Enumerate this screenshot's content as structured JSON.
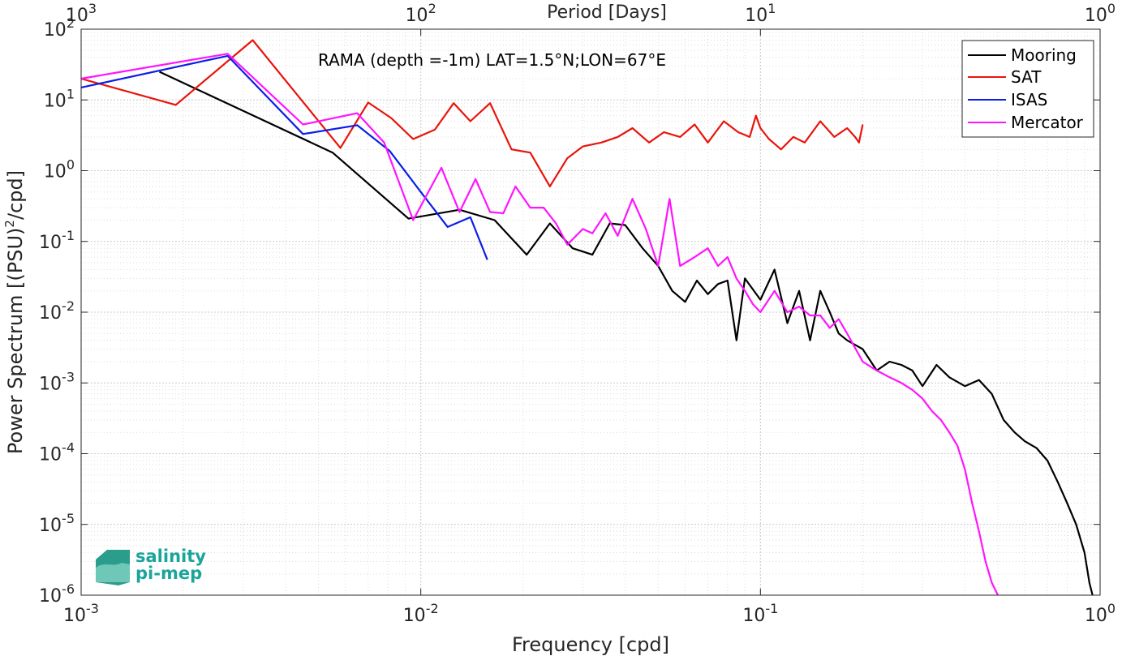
{
  "chart_data": {
    "type": "line",
    "title": "",
    "xlabel": "Frequency [cpd]",
    "ylabel": "Power Spectrum [(PSU)²/cpd]",
    "ylabel_parts": {
      "main": "Power Spectrum [(PSU)",
      "sup": "2",
      "tail": "/cpd]"
    },
    "top_xlabel": "Period [Days]",
    "annotation": "RAMA (depth =-1m) LAT=1.5°N;LON=67°E",
    "x_scale": "log",
    "y_scale": "log",
    "xlim": [
      0.001,
      1
    ],
    "ylim": [
      1e-06,
      100
    ],
    "grid": true,
    "minor_grid": true,
    "legend_position": "top-right",
    "x_ticks": [
      {
        "base": "10",
        "exp": "-3"
      },
      {
        "base": "10",
        "exp": "-2"
      },
      {
        "base": "10",
        "exp": "-1"
      },
      {
        "base": "10",
        "exp": "0"
      }
    ],
    "top_ticks": [
      {
        "base": "10",
        "exp": "3"
      },
      {
        "base": "10",
        "exp": "2"
      },
      {
        "base": "10",
        "exp": "1"
      },
      {
        "base": "10",
        "exp": "0"
      }
    ],
    "y_ticks": [
      {
        "base": "10",
        "exp": "-6"
      },
      {
        "base": "10",
        "exp": "-5"
      },
      {
        "base": "10",
        "exp": "-4"
      },
      {
        "base": "10",
        "exp": "-3"
      },
      {
        "base": "10",
        "exp": "-2"
      },
      {
        "base": "10",
        "exp": "-1"
      },
      {
        "base": "10",
        "exp": "0"
      },
      {
        "base": "10",
        "exp": "1"
      },
      {
        "base": "10",
        "exp": "2"
      }
    ],
    "series": [
      {
        "name": "Mooring",
        "color": "#000000",
        "x": [
          0.0017,
          0.0055,
          0.0092,
          0.013,
          0.0165,
          0.0205,
          0.024,
          0.028,
          0.032,
          0.036,
          0.04,
          0.045,
          0.05,
          0.055,
          0.06,
          0.065,
          0.07,
          0.075,
          0.08,
          0.085,
          0.09,
          0.1,
          0.11,
          0.12,
          0.13,
          0.14,
          0.15,
          0.16,
          0.17,
          0.18,
          0.2,
          0.22,
          0.24,
          0.26,
          0.28,
          0.3,
          0.33,
          0.36,
          0.4,
          0.44,
          0.48,
          0.52,
          0.56,
          0.6,
          0.65,
          0.7,
          0.75,
          0.8,
          0.85,
          0.9,
          0.93,
          0.95
        ],
        "y": [
          25,
          1.8,
          0.21,
          0.28,
          0.2,
          0.065,
          0.18,
          0.08,
          0.065,
          0.18,
          0.17,
          0.08,
          0.045,
          0.02,
          0.014,
          0.028,
          0.018,
          0.025,
          0.028,
          0.004,
          0.03,
          0.015,
          0.04,
          0.007,
          0.02,
          0.004,
          0.02,
          0.01,
          0.005,
          0.004,
          0.003,
          0.0015,
          0.002,
          0.0018,
          0.0015,
          0.0009,
          0.0018,
          0.0012,
          0.0009,
          0.0011,
          0.0007,
          0.0003,
          0.0002,
          0.00015,
          0.00012,
          8e-05,
          4e-05,
          2e-05,
          1e-05,
          4e-06,
          1.5e-06,
          1e-06
        ]
      },
      {
        "name": "SAT",
        "color": "#e8140c",
        "x": [
          0.001,
          0.0019,
          0.0032,
          0.0058,
          0.007,
          0.0082,
          0.0095,
          0.011,
          0.0125,
          0.014,
          0.016,
          0.0185,
          0.021,
          0.024,
          0.027,
          0.03,
          0.034,
          0.038,
          0.042,
          0.047,
          0.052,
          0.058,
          0.064,
          0.07,
          0.078,
          0.086,
          0.093,
          0.097,
          0.1,
          0.106,
          0.115,
          0.125,
          0.135,
          0.15,
          0.165,
          0.18,
          0.19,
          0.195,
          0.2
        ],
        "y": [
          20,
          8.5,
          70,
          2.1,
          9.2,
          5.5,
          2.8,
          3.8,
          9,
          5,
          9,
          2,
          1.8,
          0.6,
          1.5,
          2.2,
          2.5,
          3,
          4,
          2.5,
          3.5,
          3,
          4.5,
          2.5,
          5,
          3.5,
          3,
          6,
          4,
          2.8,
          2,
          3,
          2.5,
          5,
          3,
          4,
          3,
          2.5,
          4.5
        ]
      },
      {
        "name": "ISAS",
        "color": "#0a1ee6",
        "x": [
          0.001,
          0.0027,
          0.0045,
          0.0065,
          0.0081,
          0.01,
          0.012,
          0.014,
          0.0157
        ],
        "y": [
          15,
          42,
          3.3,
          4.4,
          1.9,
          0.5,
          0.16,
          0.22,
          0.055
        ]
      },
      {
        "name": "Mercator",
        "color": "#ff14ff",
        "x": [
          0.001,
          0.0027,
          0.0045,
          0.0065,
          0.0078,
          0.0095,
          0.0115,
          0.013,
          0.0145,
          0.016,
          0.0175,
          0.019,
          0.021,
          0.023,
          0.025,
          0.027,
          0.03,
          0.032,
          0.035,
          0.038,
          0.042,
          0.046,
          0.05,
          0.054,
          0.058,
          0.064,
          0.07,
          0.075,
          0.08,
          0.085,
          0.09,
          0.095,
          0.1,
          0.11,
          0.12,
          0.13,
          0.14,
          0.15,
          0.16,
          0.17,
          0.18,
          0.2,
          0.22,
          0.24,
          0.26,
          0.28,
          0.3,
          0.32,
          0.34,
          0.36,
          0.38,
          0.4,
          0.42,
          0.44,
          0.46,
          0.48,
          0.5
        ],
        "y": [
          20,
          45,
          4.5,
          6.5,
          2.5,
          0.2,
          1.1,
          0.26,
          0.76,
          0.26,
          0.25,
          0.6,
          0.3,
          0.3,
          0.18,
          0.09,
          0.15,
          0.13,
          0.25,
          0.12,
          0.4,
          0.15,
          0.045,
          0.4,
          0.045,
          0.06,
          0.08,
          0.045,
          0.06,
          0.03,
          0.02,
          0.013,
          0.01,
          0.02,
          0.01,
          0.012,
          0.009,
          0.009,
          0.006,
          0.008,
          0.005,
          0.002,
          0.0015,
          0.0012,
          0.001,
          0.0008,
          0.0006,
          0.0004,
          0.0003,
          0.0002,
          0.00013,
          6e-05,
          2e-05,
          8e-06,
          3e-06,
          1.5e-06,
          1e-06
        ]
      }
    ]
  },
  "logo": {
    "line1": "salinity",
    "line2": "pi-mep"
  }
}
